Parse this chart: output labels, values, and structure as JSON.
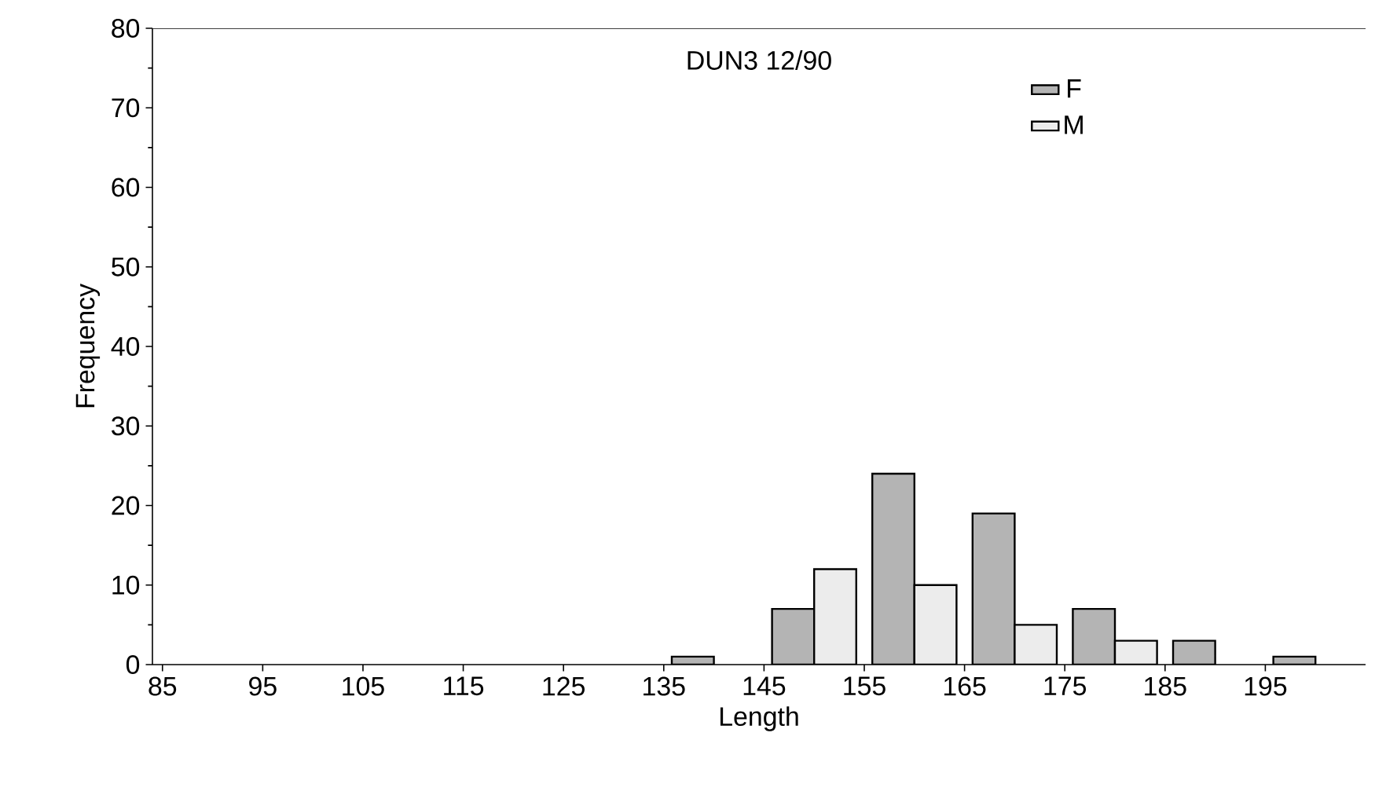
{
  "chart_data": {
    "type": "bar",
    "title": "DUN3     12/90",
    "xlabel": "Length",
    "ylabel": "Frequency",
    "x": [
      140,
      150,
      160,
      170,
      180,
      190,
      200
    ],
    "series": [
      {
        "name": "F",
        "color": "#b4b4b4",
        "values": [
          1,
          7,
          24,
          19,
          7,
          3,
          1
        ]
      },
      {
        "name": "M",
        "color": "#ececec",
        "values": [
          null,
          12,
          10,
          5,
          3,
          null,
          null
        ]
      }
    ],
    "xlim": [
      84,
      205
    ],
    "xticks": [
      85,
      95,
      105,
      115,
      125,
      135,
      145,
      155,
      165,
      175,
      185,
      195
    ],
    "ylim": [
      0,
      80
    ],
    "yticks": [
      0,
      10,
      20,
      30,
      40,
      50,
      60,
      70,
      80
    ],
    "grid": false,
    "legend": "top right"
  }
}
